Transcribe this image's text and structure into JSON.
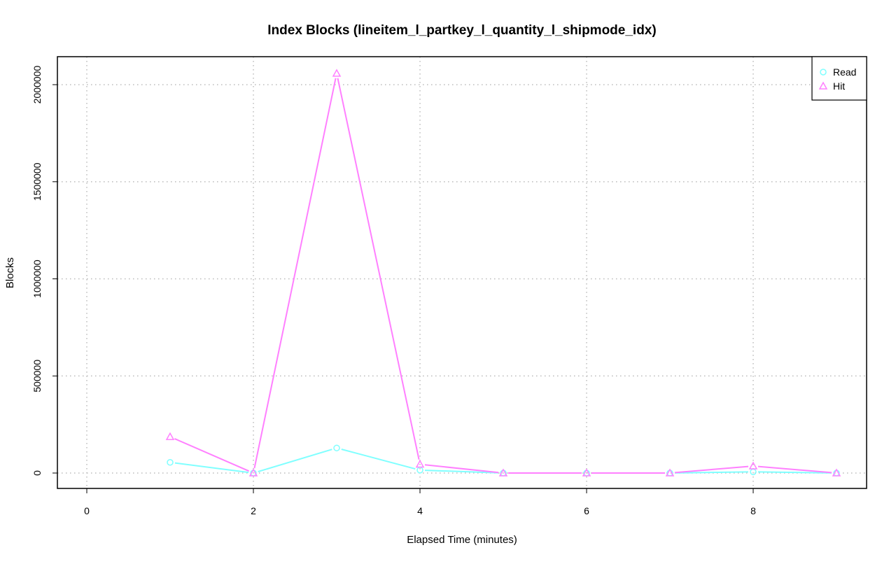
{
  "chart_data": {
    "type": "line",
    "title": "Index Blocks (lineitem_l_partkey_l_quantity_l_shipmode_idx)",
    "xlabel": "Elapsed Time (minutes)",
    "ylabel": "Blocks",
    "xlim": [
      0,
      9
    ],
    "ylim": [
      0,
      2060000
    ],
    "x_ticks": [
      "0",
      "2",
      "4",
      "6",
      "8"
    ],
    "y_ticks": [
      "0",
      "500000",
      "1000000",
      "1500000",
      "2000000"
    ],
    "grid": true,
    "legend_position": "top-right",
    "x": [
      1,
      2,
      3,
      4,
      5,
      6,
      7,
      8,
      9
    ],
    "series": [
      {
        "name": "Read",
        "color": "#80ffff",
        "marker": "circle",
        "values": [
          55000,
          0,
          129000,
          15000,
          0,
          0,
          0,
          6000,
          0
        ]
      },
      {
        "name": "Hit",
        "color": "#ff80ff",
        "marker": "triangle",
        "values": [
          187000,
          0,
          2058000,
          45000,
          0,
          0,
          0,
          36000,
          0
        ]
      }
    ]
  }
}
